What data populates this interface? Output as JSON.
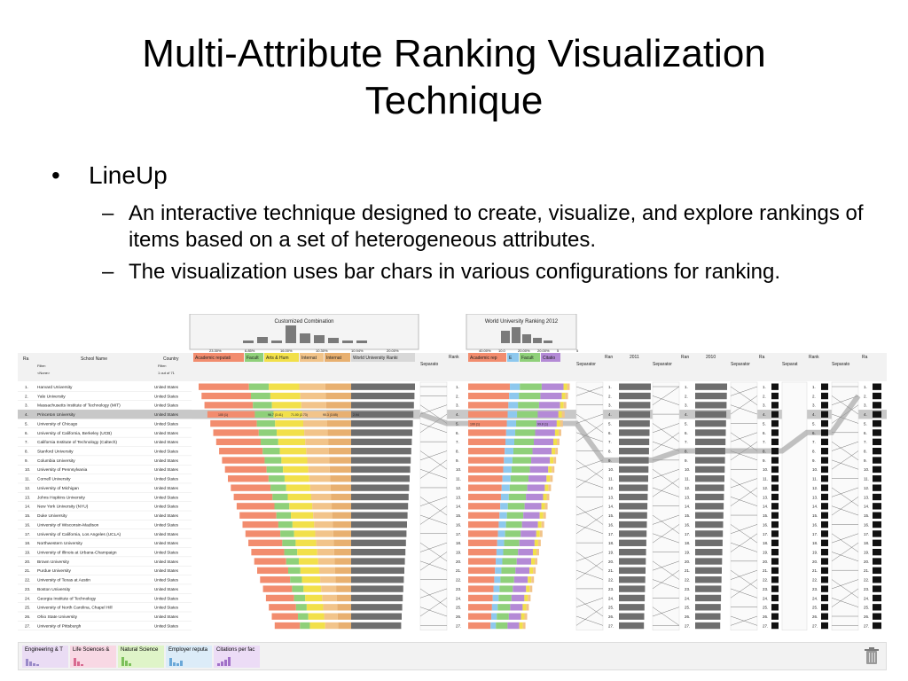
{
  "slide": {
    "title_line1": "Multi-Attribute Ranking Visualization",
    "title_line2": "Technique",
    "bullet": "LineUp",
    "sub1": "An interactive technique designed to create, visualize, and explore rankings of items based on a set of heterogeneous attributes.",
    "sub2": "The visualization uses bar chars in various configurations for ranking."
  },
  "lineup": {
    "group1_title": "Customized Combination",
    "group2_title": "World University Ranking 2012",
    "group1_pcts": [
      "23.30%",
      "6.85%",
      "16.00%",
      "10.30%",
      "10.94%",
      "20.00%"
    ],
    "group2_pcts": [
      "40.00%",
      "10.0",
      "20.00%",
      "20.00%",
      "5",
      "5"
    ],
    "col_rank": "Ra",
    "col_school": "School Name",
    "col_country": "Country",
    "filter_label": "Filter:",
    "filter_value": "<None>",
    "country_filter": "1 out of 71",
    "g1_cols": [
      "Academic reputati",
      "Facult",
      "Arts & Hum",
      "Internat",
      "Internat",
      "World University Ranki"
    ],
    "g2_cols": [
      "Academic rep",
      "E",
      "Facult",
      "Citatio"
    ],
    "sep_label": "Separato",
    "separator_label": "Separator",
    "rank_label": "Rank",
    "ran_label": "Ran",
    "year_2011": "2011",
    "year_2010": "2010",
    "sel_values": [
      "100 (1)",
      "96.7 (3.41)",
      "71.00 (2.73)",
      "90.3 (3.65)",
      "2.94"
    ],
    "sel_values2": [
      "100 (1)",
      "99.8 (1)"
    ],
    "schools": [
      "Harvard University",
      "Yale University",
      "Massachusetts Institute of Technology (MIT)",
      "Princeton University",
      "University of Chicago",
      "University of California, Berkeley (UCB)",
      "California Institute of Technology (Caltech)",
      "Stanford University",
      "Columbia University",
      "University of Pennsylvania",
      "Cornell University",
      "University of Michigan",
      "Johns Hopkins University",
      "New York University (NYU)",
      "Duke University",
      "University of Wisconsin-Madison",
      "University of California, Los Angeles (UCLA)",
      "Northwestern University",
      "University of Illinois at Urbana-Champaign",
      "Brown University",
      "Purdue University",
      "University of Texas at Austin",
      "Boston University",
      "Georgia Institute of Technology",
      "University of North Carolina, Chapel Hill",
      "Ohio State University",
      "University of Pittsburgh"
    ],
    "country": "United States",
    "selected_row": 4,
    "dock_items": [
      "Engineering & T",
      "Life Sciences &",
      "Natural Science",
      "Employer reputa",
      "Citations per fac"
    ]
  },
  "colors": {
    "academic": "#f28c6e",
    "faculty": "#8fd07a",
    "arts": "#f2e04a",
    "intl": "#f2c48a",
    "intl2": "#e8b070",
    "world": "#6e6e6e",
    "citation": "#b48ad6",
    "employer": "#8ec8ee",
    "selected_row": "#c8c8c8"
  }
}
